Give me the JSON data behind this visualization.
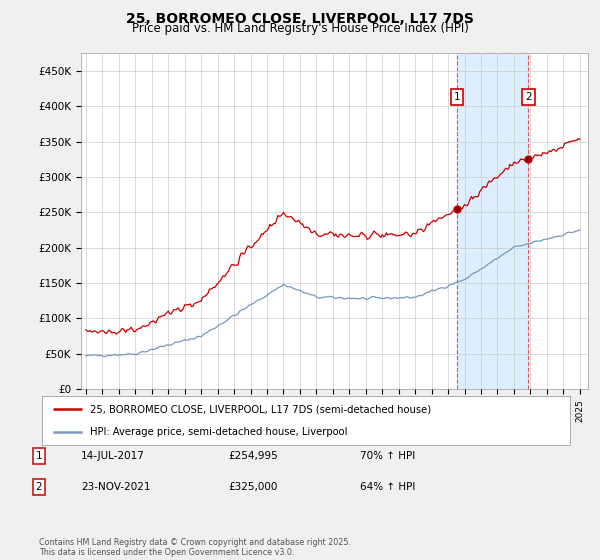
{
  "title": "25, BORROMEO CLOSE, LIVERPOOL, L17 7DS",
  "subtitle": "Price paid vs. HM Land Registry's House Price Index (HPI)",
  "legend_line1": "25, BORROMEO CLOSE, LIVERPOOL, L17 7DS (semi-detached house)",
  "legend_line2": "HPI: Average price, semi-detached house, Liverpool",
  "annotation1_date": "14-JUL-2017",
  "annotation1_price": "£254,995",
  "annotation1_hpi": "70% ↑ HPI",
  "annotation2_date": "23-NOV-2021",
  "annotation2_price": "£325,000",
  "annotation2_hpi": "64% ↑ HPI",
  "footer": "Contains HM Land Registry data © Crown copyright and database right 2025.\nThis data is licensed under the Open Government Licence v3.0.",
  "red_color": "#cc0000",
  "blue_color": "#7799bb",
  "vline_color": "#dd4444",
  "shade_color": "#ddeeff",
  "background_color": "#f0f0f0",
  "plot_bg_color": "#ffffff",
  "sale1_year": 2017.54,
  "sale2_year": 2021.88,
  "sale1_price": 254995,
  "sale2_price": 325000
}
